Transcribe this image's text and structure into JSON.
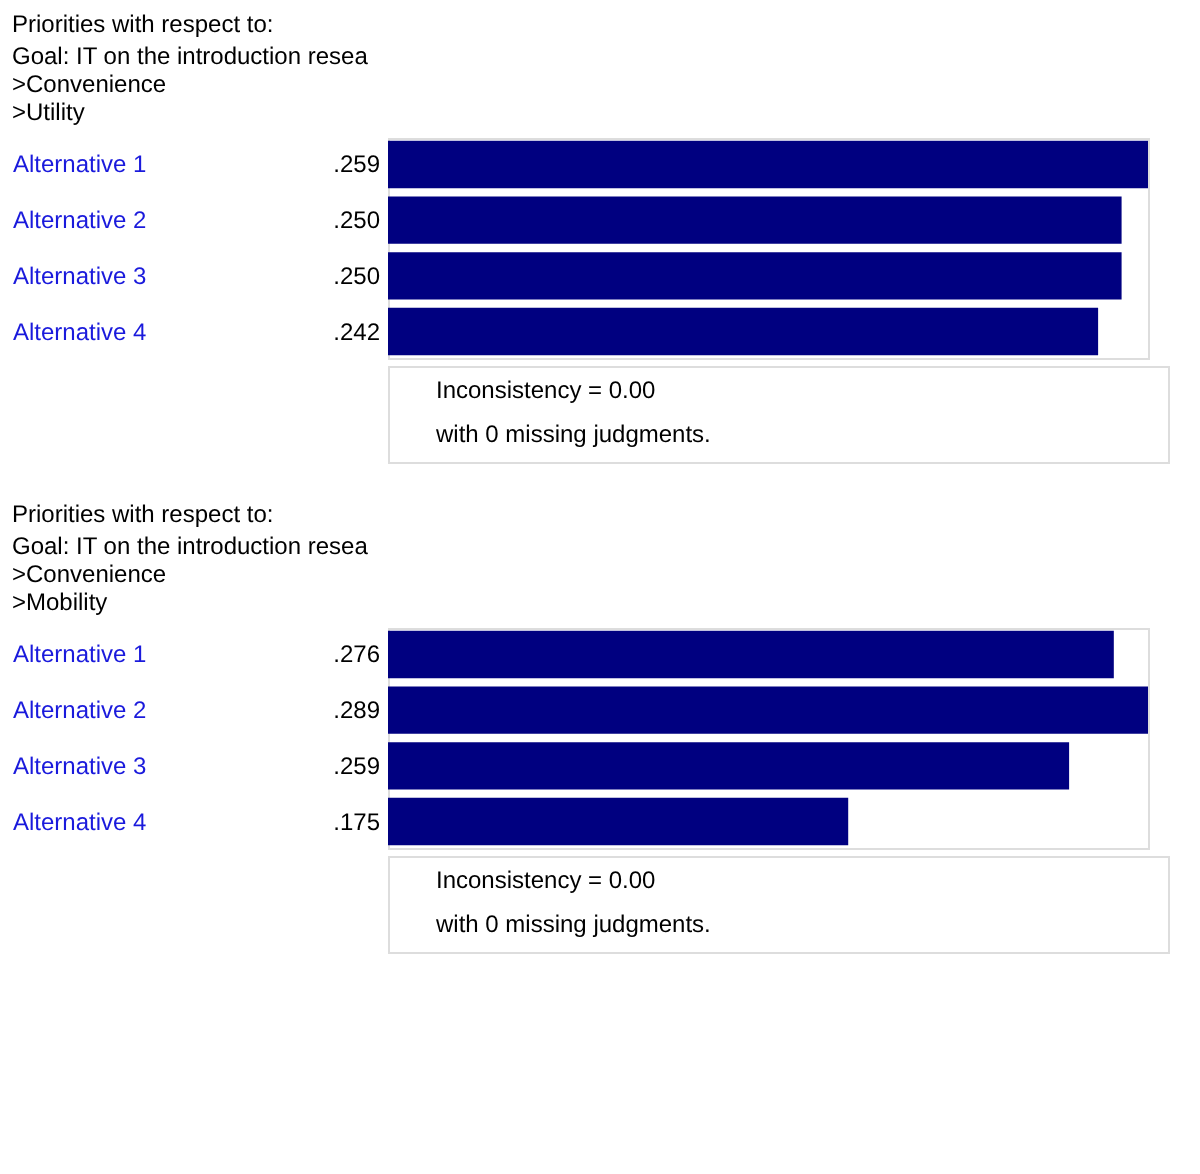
{
  "chart_data": [
    {
      "type": "bar",
      "orientation": "horizontal",
      "title": "Priorities with respect to:",
      "subtitle": [
        "Goal: IT on the introduction resea",
        ">Convenience",
        ">Utility"
      ],
      "categories": [
        "Alternative 1",
        "Alternative 2",
        "Alternative 3",
        "Alternative 4"
      ],
      "values": [
        0.259,
        0.25,
        0.25,
        0.242
      ],
      "value_labels": [
        ".259",
        ".250",
        ".250",
        ".242"
      ],
      "color": "#000080",
      "grid": false,
      "legend": false,
      "tick_labels": "y",
      "annotations": [
        "Inconsistency = 0.00",
        "with 0  missing judgments."
      ]
    },
    {
      "type": "bar",
      "orientation": "horizontal",
      "title": "Priorities with respect to:",
      "subtitle": [
        "Goal: IT on the introduction resea",
        ">Convenience",
        ">Mobility"
      ],
      "categories": [
        "Alternative 1",
        "Alternative 2",
        "Alternative 3",
        "Alternative 4"
      ],
      "values": [
        0.276,
        0.289,
        0.259,
        0.175
      ],
      "value_labels": [
        ".276",
        ".289",
        ".259",
        ".175"
      ],
      "color": "#000080",
      "grid": false,
      "legend": false,
      "tick_labels": "y",
      "annotations": [
        "Inconsistency = 0.00",
        "with 0  missing judgments."
      ]
    }
  ]
}
